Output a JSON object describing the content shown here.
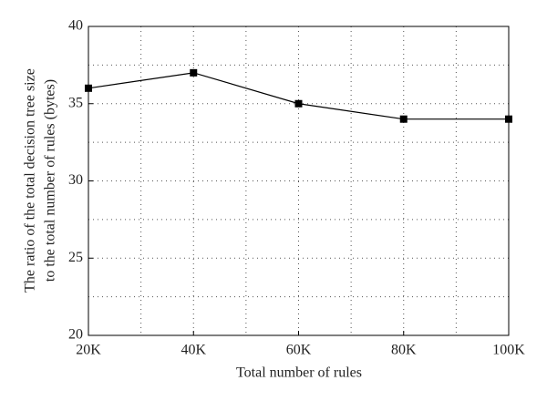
{
  "chart_data": {
    "type": "line",
    "xlabel": "Total number of rules",
    "ylabel": [
      "The ratio of the total decision tree size",
      "to the total number of rules (bytes)"
    ],
    "x": [
      20000,
      40000,
      60000,
      80000,
      100000
    ],
    "series": [
      {
        "name": "Ratio",
        "color": "#000000",
        "values": [
          36,
          37,
          35,
          34,
          34
        ]
      }
    ],
    "xlim": [
      20000,
      100000
    ],
    "xticks": [
      {
        "value": 20000,
        "label": "20K"
      },
      {
        "value": 40000,
        "label": "40K"
      },
      {
        "value": 60000,
        "label": "60K"
      },
      {
        "value": 80000,
        "label": "80K"
      },
      {
        "value": 100000,
        "label": "100K"
      }
    ],
    "x_minor_ticks": [
      30000,
      50000,
      70000,
      90000
    ],
    "ylim": [
      20,
      40
    ],
    "yticks": [
      20,
      25,
      30,
      35,
      40
    ],
    "y_minor_ticks": [
      22.5,
      27.5,
      32.5,
      37.5
    ],
    "grid": true
  }
}
